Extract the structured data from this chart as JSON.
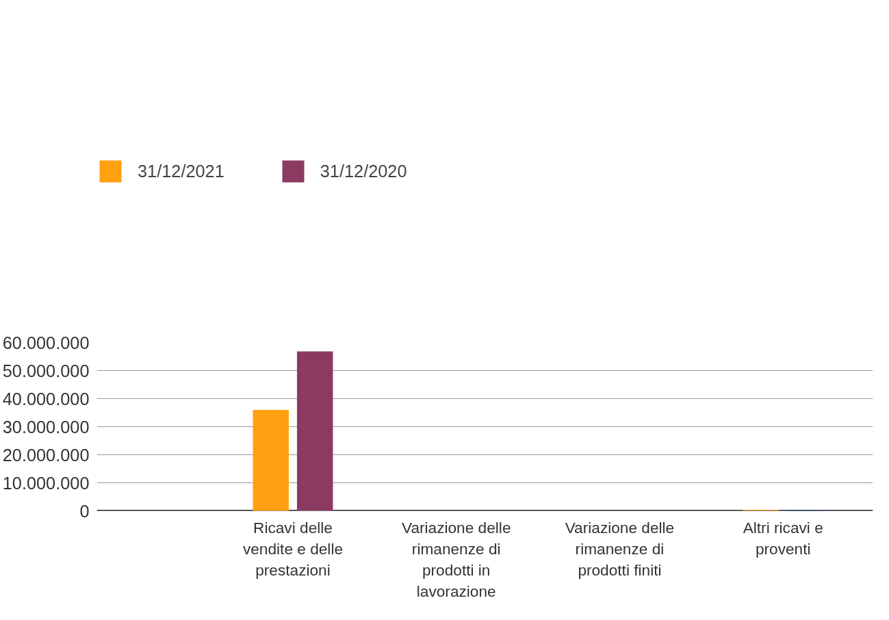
{
  "chart_data": {
    "type": "bar",
    "categories": [
      "Ricavi delle vendite e delle prestazioni",
      "Variazione delle rimanenze di prodotti in lavorazione",
      "Variazione delle rimanenze di prodotti finiti",
      "Altri ricavi e proventi"
    ],
    "series": [
      {
        "name": "31/12/2021",
        "color": "#ffa010",
        "values": [
          36000000,
          0,
          0,
          300000
        ]
      },
      {
        "name": "31/12/2020",
        "color": "#8b3a62",
        "colors": [
          "#8b3a62",
          "#8b3a62",
          "#8b3a62",
          "#0a3366"
        ],
        "values": [
          56800000,
          0,
          0,
          300000
        ]
      }
    ],
    "ylim": [
      0,
      60000000
    ],
    "yticks": [
      {
        "value": 0,
        "label": "0"
      },
      {
        "value": 10000000,
        "label": "10.000.000"
      },
      {
        "value": 20000000,
        "label": "20.000.000"
      },
      {
        "value": 30000000,
        "label": "30.000.000"
      },
      {
        "value": 40000000,
        "label": "40.000.000"
      },
      {
        "value": 50000000,
        "label": "50.000.000"
      },
      {
        "value": 60000000,
        "label": "60.000.000"
      }
    ],
    "grid": "y",
    "legend": "top left"
  }
}
